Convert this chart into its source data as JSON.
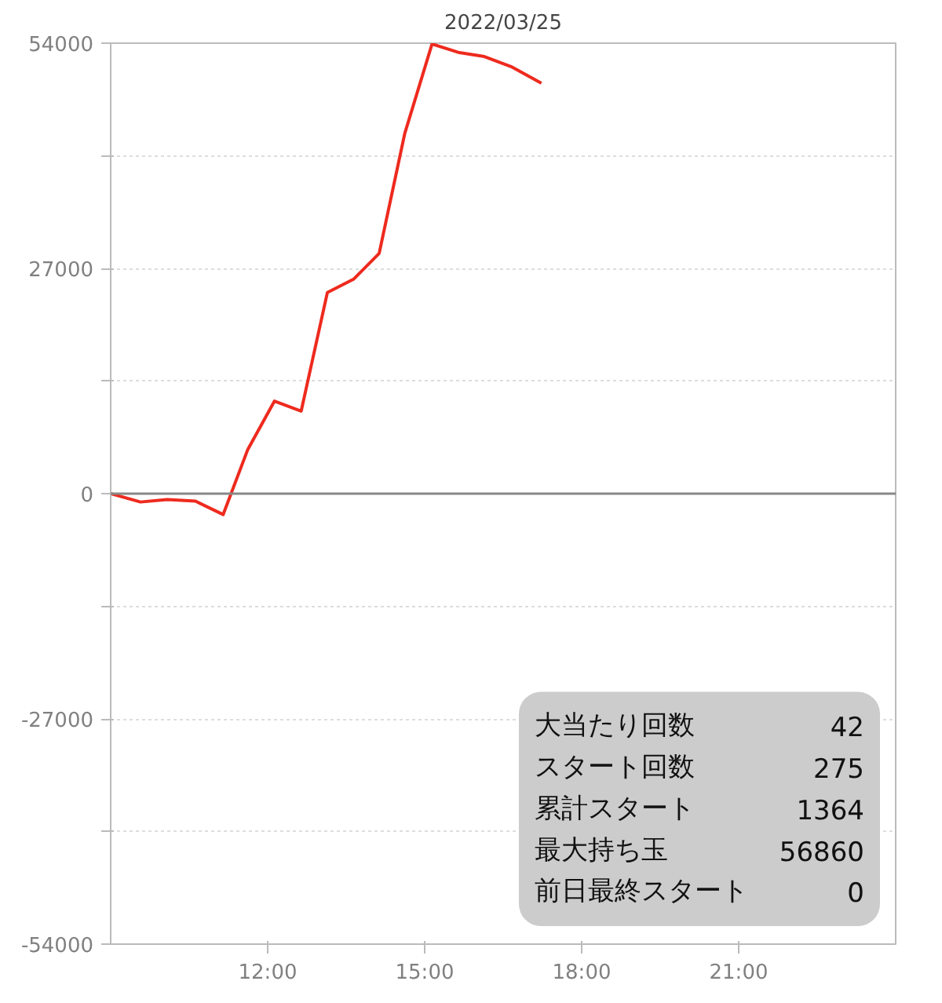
{
  "chart_data": {
    "type": "line",
    "title": "2022/03/25",
    "x": [
      9.0,
      9.57,
      10.08,
      10.62,
      11.15,
      11.62,
      12.13,
      12.64,
      13.14,
      13.64,
      14.13,
      14.62,
      15.14,
      15.64,
      16.14,
      16.65,
      17.23
    ],
    "series": [
      {
        "color": "#ee2a1e",
        "values": [
          0,
          -1000,
          -700,
          -900,
          -2500,
          5300,
          11100,
          9900,
          24100,
          25700,
          28800,
          43200,
          53900,
          52900,
          52400,
          51200,
          49200
        ]
      }
    ],
    "xlim": [
      9,
      24
    ],
    "xticks": [
      {
        "value": 12,
        "label": "12:00"
      },
      {
        "value": 15,
        "label": "15:00"
      },
      {
        "value": 18,
        "label": "18:00"
      },
      {
        "value": 21,
        "label": "21:00"
      }
    ],
    "ylim": [
      -54000,
      54000
    ],
    "yticks": [
      -54000,
      {
        "value": -40500,
        "label": null
      },
      -27000,
      {
        "value": -13500,
        "label": null
      },
      0,
      {
        "value": 13500,
        "label": null
      },
      27000,
      {
        "value": 40500,
        "label": null
      },
      54000
    ],
    "grid": "y",
    "marker": "none",
    "line_style": "solid",
    "ref_lines": [
      {
        "axis": "y",
        "value": 0,
        "color": "#888888"
      }
    ],
    "annotations": [
      "大当たり回数",
      "42",
      "スタート回数",
      "275",
      "累計スタート",
      "1364",
      "最大持ち玉",
      "56860",
      "前日最終スタート",
      "0"
    ]
  }
}
